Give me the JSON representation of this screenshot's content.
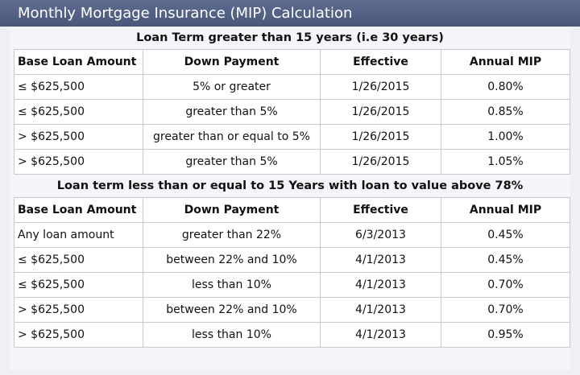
{
  "title": "Monthly Mortgage Insurance (MIP) Calculation",
  "headers": [
    "Base Loan Amount",
    "Down Payment",
    "Effective",
    "Annual MIP"
  ],
  "sections": [
    {
      "heading": "Loan Term greater than 15 years (i.e 30 years)",
      "rows": [
        [
          "≤ $625,500",
          "5% or greater",
          "1/26/2015",
          "0.80%"
        ],
        [
          "≤ $625,500",
          "greater than 5%",
          "1/26/2015",
          "0.85%"
        ],
        [
          "> $625,500",
          "greater than or equal to 5%",
          "1/26/2015",
          "1.00%"
        ],
        [
          "> $625,500",
          "greater than 5%",
          "1/26/2015",
          "1.05%"
        ]
      ]
    },
    {
      "heading": "Loan term less than or equal to 15 Years with loan to value above 78%",
      "rows": [
        [
          "Any loan amount",
          "greater than 22%",
          "6/3/2013",
          "0.45%"
        ],
        [
          "≤ $625,500",
          "between 22% and 10%",
          "4/1/2013",
          "0.45%"
        ],
        [
          "≤ $625,500",
          "less than 10%",
          "4/1/2013",
          "0.70%"
        ],
        [
          "> $625,500",
          "between 22% and 10%",
          "4/1/2013",
          "0.70%"
        ],
        [
          "> $625,500",
          "less than 10%",
          "4/1/2013",
          "0.95%"
        ]
      ]
    }
  ]
}
